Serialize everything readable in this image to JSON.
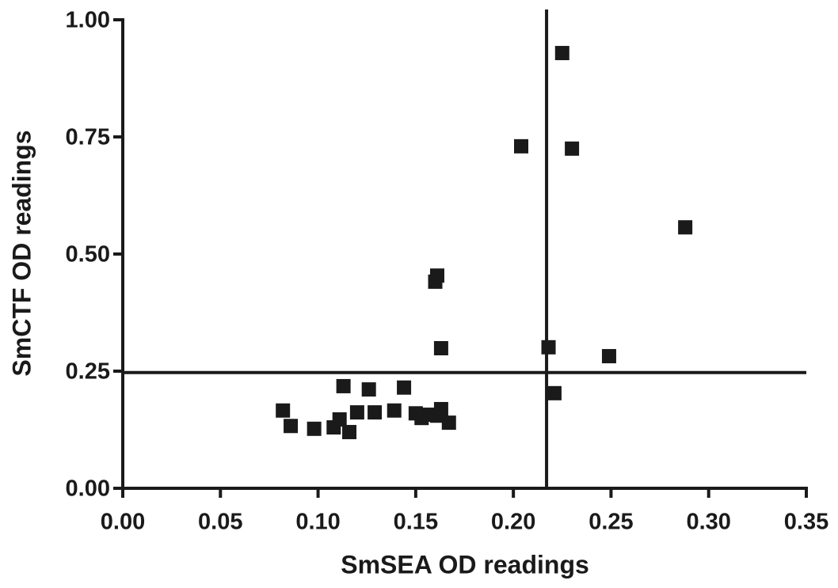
{
  "chart_data": {
    "type": "scatter",
    "xlabel": "SmSEA OD readings",
    "ylabel": "SmCTF OD readings",
    "x": [
      0.082,
      0.086,
      0.098,
      0.108,
      0.111,
      0.113,
      0.116,
      0.12,
      0.126,
      0.129,
      0.139,
      0.144,
      0.15,
      0.153,
      0.156,
      0.16,
      0.161,
      0.161,
      0.163,
      0.163,
      0.167,
      0.204,
      0.218,
      0.221,
      0.225,
      0.23,
      0.249,
      0.288
    ],
    "values": [
      0.166,
      0.133,
      0.127,
      0.13,
      0.147,
      0.218,
      0.12,
      0.162,
      0.211,
      0.162,
      0.166,
      0.215,
      0.16,
      0.15,
      0.157,
      0.441,
      0.454,
      0.155,
      0.169,
      0.299,
      0.14,
      0.73,
      0.301,
      0.203,
      0.929,
      0.725,
      0.282,
      0.557
    ],
    "color": "#1a1a1a",
    "xlim": [
      0,
      0.35
    ],
    "ylim": [
      0,
      1
    ],
    "xticks": [
      {
        "value": 0,
        "label": "0.00"
      },
      {
        "value": 0.05,
        "label": "0.05"
      },
      {
        "value": 0.1,
        "label": "0.10"
      },
      {
        "value": 0.15,
        "label": "0.15"
      },
      {
        "value": 0.2,
        "label": "0.20"
      },
      {
        "value": 0.25,
        "label": "0.25"
      },
      {
        "value": 0.3,
        "label": "0.30"
      },
      {
        "value": 0.35,
        "label": "0.35"
      }
    ],
    "yticks": [
      {
        "value": 0,
        "label": "0.00"
      },
      {
        "value": 0.25,
        "label": "0.25"
      },
      {
        "value": 0.5,
        "label": "0.50"
      },
      {
        "value": 0.75,
        "label": "0.75"
      },
      {
        "value": 1,
        "label": "1.00"
      }
    ],
    "vline": 0.217,
    "hline": 0.247
  }
}
